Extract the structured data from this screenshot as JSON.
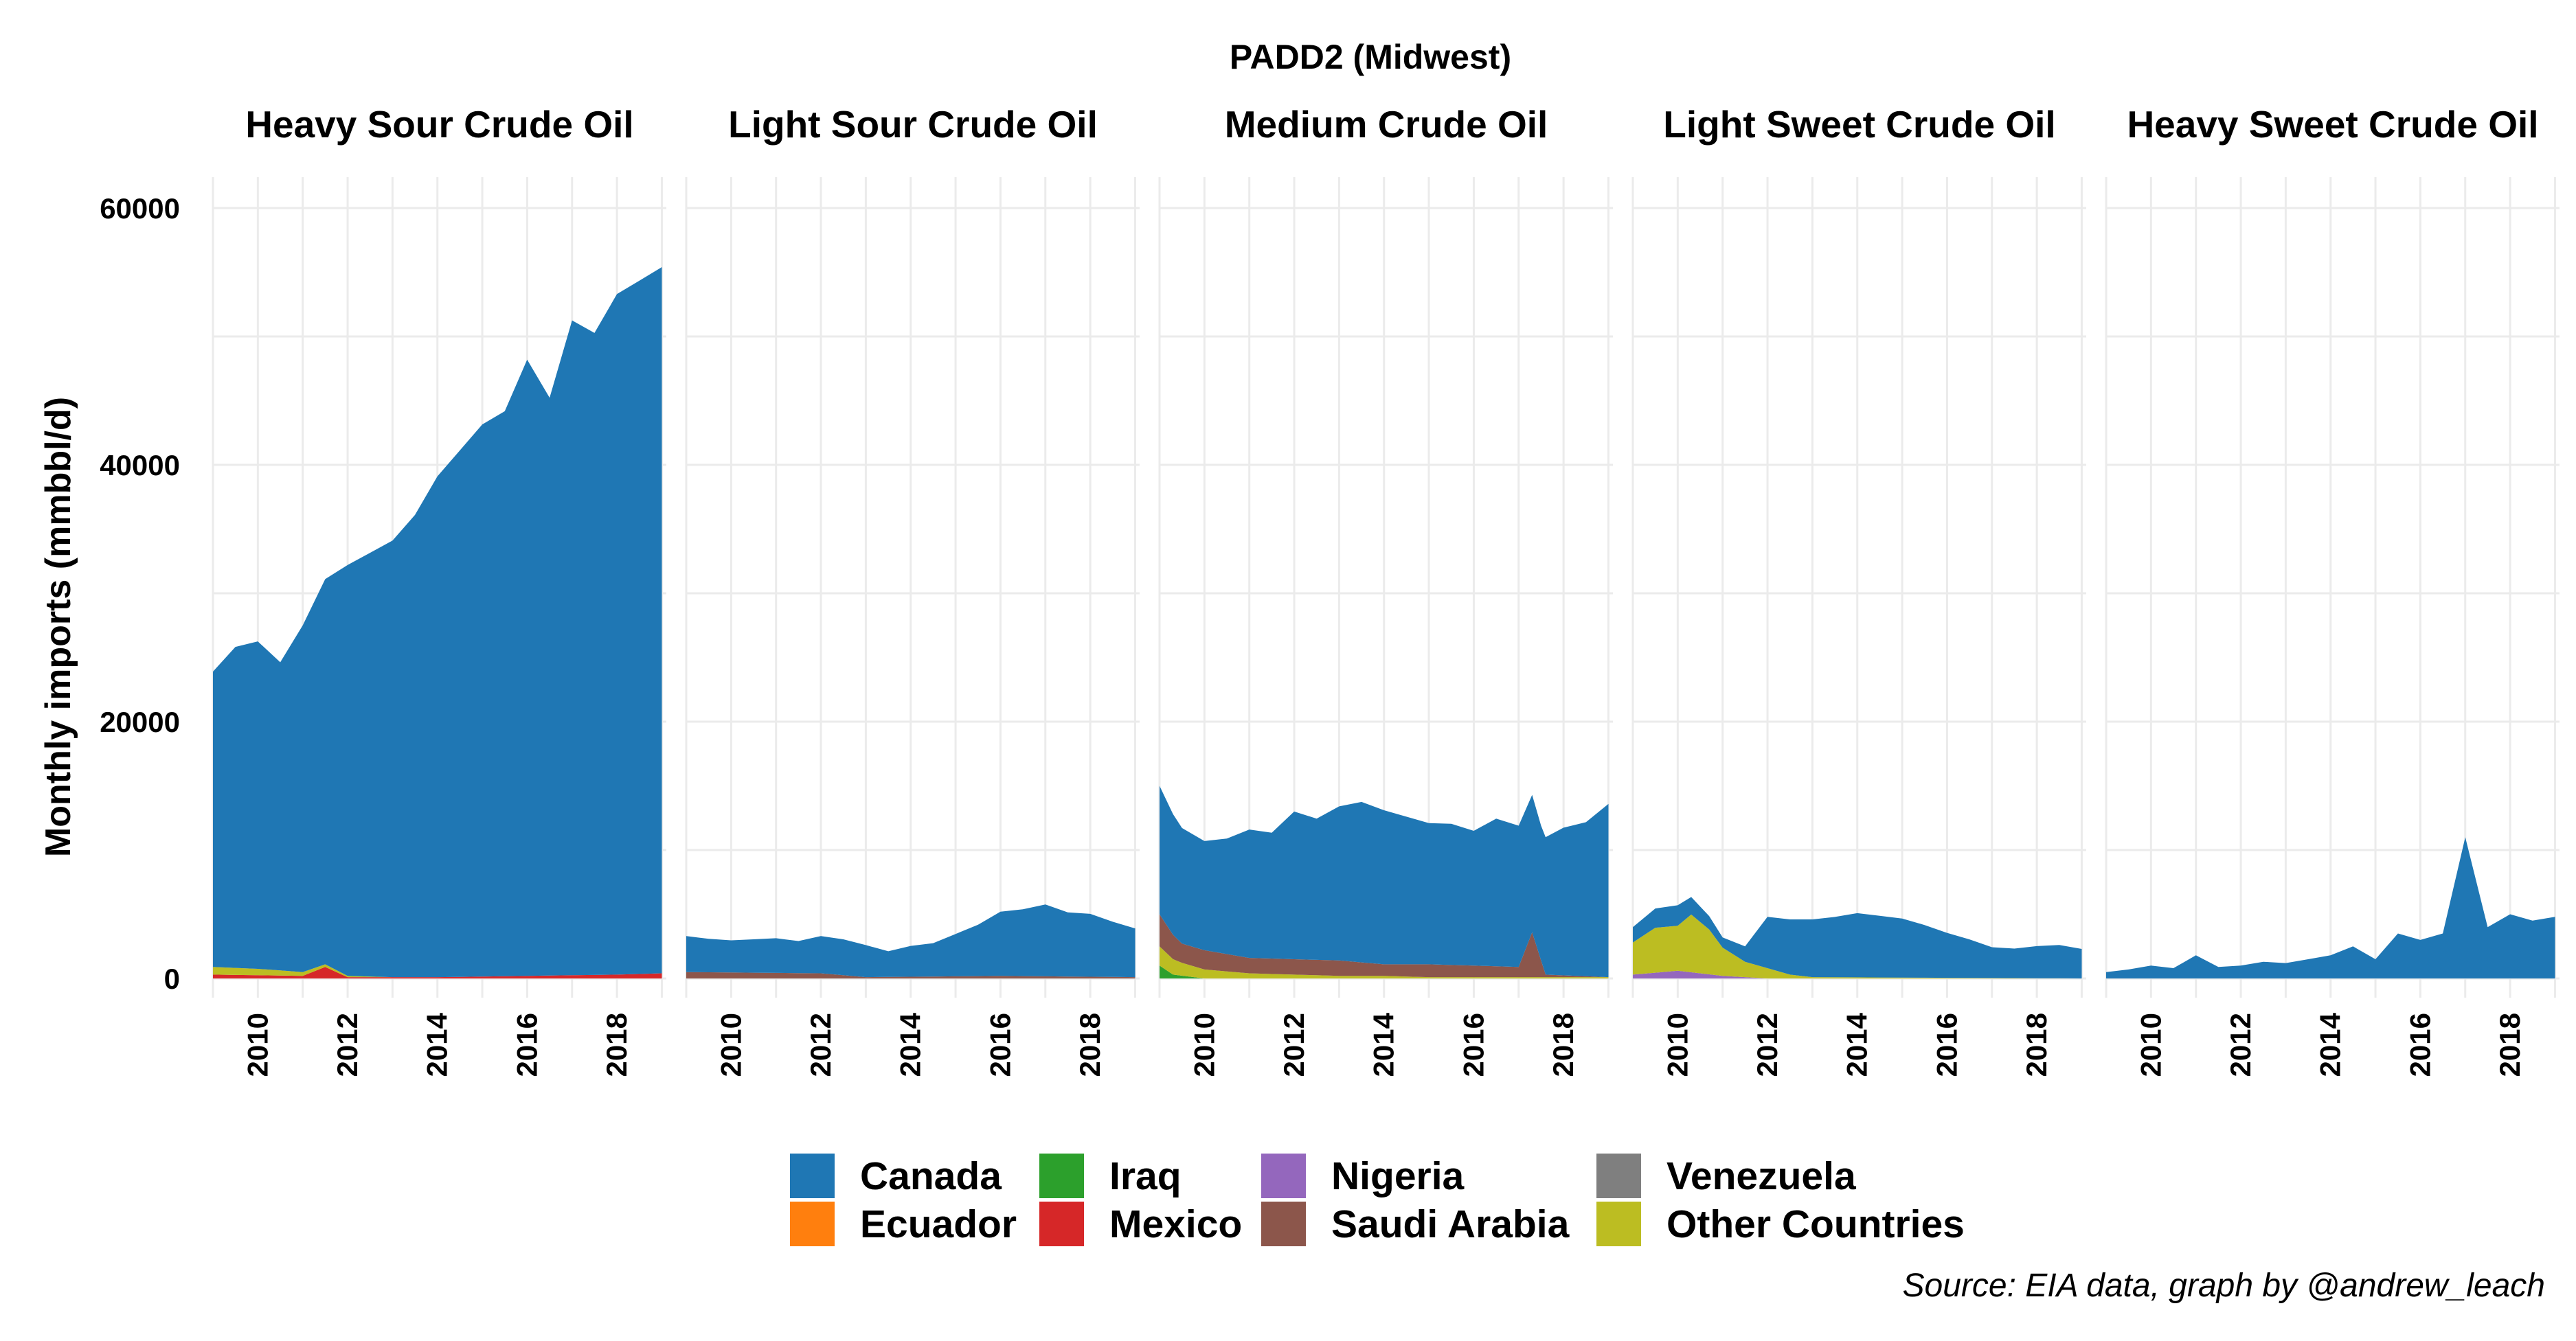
{
  "chart_data": {
    "type": "area",
    "stacked": true,
    "title": "PADD2 (Midwest)",
    "ylabel": "Monthly imports (mmbbl/d)",
    "xlabel": "",
    "caption": "Source: EIA data, graph by @andrew_leach",
    "ylim": [
      0,
      62000
    ],
    "xlim": [
      2009.0,
      2019.1
    ],
    "yticks": [
      "0",
      "20000",
      "40000",
      "60000"
    ],
    "xticks": [
      "2010",
      "2012",
      "2014",
      "2016",
      "2018"
    ],
    "legend_position": "bottom",
    "legend": [
      {
        "name": "Canada",
        "color": "#1f77b4"
      },
      {
        "name": "Ecuador",
        "color": "#ff7f0e"
      },
      {
        "name": "Iraq",
        "color": "#2ca02c"
      },
      {
        "name": "Mexico",
        "color": "#d62728"
      },
      {
        "name": "Nigeria",
        "color": "#9467bd"
      },
      {
        "name": "Saudi Arabia",
        "color": "#8c564b"
      },
      {
        "name": "Venezuela",
        "color": "#7f7f7f"
      },
      {
        "name": "Other Countries",
        "color": "#bcbd22"
      }
    ],
    "facets": [
      {
        "title": "Heavy Sour Crude Oil",
        "series": [
          {
            "name": "Canada",
            "x": [
              2009.0,
              2009.5,
              2010.0,
              2010.5,
              2011.0,
              2011.5,
              2012.0,
              2012.5,
              2013.0,
              2013.5,
              2014.0,
              2014.5,
              2015.0,
              2015.5,
              2016.0,
              2016.5,
              2017.0,
              2017.5,
              2018.0,
              2018.5,
              2019.0
            ],
            "y": [
              23000,
              25000,
              25500,
              24000,
              27000,
              30000,
              32000,
              33000,
              34000,
              36000,
              39000,
              41000,
              43000,
              44000,
              48000,
              45000,
              51000,
              50000,
              53000,
              54000,
              55000
            ]
          },
          {
            "name": "Other Countries",
            "x": [
              2009.0,
              2010.0,
              2011.0,
              2012.0,
              2013.0,
              2019.0
            ],
            "y": [
              600,
              500,
              300,
              100,
              0,
              0
            ]
          },
          {
            "name": "Mexico",
            "x": [
              2009.0,
              2011.0,
              2011.5,
              2012.0,
              2014.0,
              2018.0,
              2019.0
            ],
            "y": [
              300,
              200,
              900,
              100,
              100,
              300,
              400
            ]
          }
        ]
      },
      {
        "title": "Light Sour Crude Oil",
        "series": [
          {
            "name": "Canada",
            "x": [
              2009.0,
              2009.5,
              2010.0,
              2010.5,
              2011.0,
              2011.5,
              2012.0,
              2012.5,
              2013.0,
              2013.5,
              2014.0,
              2014.5,
              2015.0,
              2015.5,
              2016.0,
              2016.5,
              2017.0,
              2017.5,
              2018.0,
              2018.5,
              2019.0
            ],
            "y": [
              2800,
              2600,
              2500,
              2600,
              2700,
              2500,
              2900,
              2800,
              2500,
              2000,
              2400,
              2600,
              3300,
              4000,
              5000,
              5200,
              5600,
              5000,
              4900,
              4300,
              3800
            ]
          },
          {
            "name": "Saudi Arabia",
            "x": [
              2009.0,
              2012.0,
              2013.0,
              2016.0,
              2019.0
            ],
            "y": [
              500,
              400,
              100,
              200,
              100
            ]
          }
        ]
      },
      {
        "title": "Medium Crude Oil",
        "series": [
          {
            "name": "Canada",
            "x": [
              2009.0,
              2009.5,
              2010.0,
              2010.5,
              2011.0,
              2011.5,
              2012.0,
              2012.5,
              2013.0,
              2013.5,
              2014.0,
              2014.5,
              2015.0,
              2015.5,
              2016.0,
              2016.5,
              2017.0,
              2017.5,
              2018.0,
              2018.5,
              2019.0
            ],
            "y": [
              10000,
              9000,
              8500,
              9000,
              10000,
              9800,
              11500,
              11000,
              12000,
              12500,
              12000,
              11500,
              11000,
              11000,
              10500,
              11500,
              11000,
              10500,
              11500,
              12000,
              13500
            ]
          },
          {
            "name": "Saudi Arabia",
            "x": [
              2009.0,
              2009.5,
              2010.0,
              2011.0,
              2012.0,
              2013.0,
              2014.0,
              2015.0,
              2016.0,
              2017.0,
              2017.3,
              2017.6,
              2019.0
            ],
            "y": [
              2500,
              1500,
              1500,
              1200,
              1200,
              1200,
              900,
              1000,
              900,
              800,
              3500,
              200,
              0
            ]
          },
          {
            "name": "Other Countries",
            "x": [
              2009.0,
              2009.5,
              2010.0,
              2011.0,
              2012.0,
              2013.0,
              2014.0,
              2015.0,
              2016.0,
              2017.0,
              2019.0
            ],
            "y": [
              1500,
              1000,
              700,
              400,
              300,
              200,
              200,
              100,
              100,
              100,
              100
            ]
          },
          {
            "name": "Iraq",
            "x": [
              2009.0,
              2009.3,
              2010.0,
              2019.0
            ],
            "y": [
              1000,
              300,
              0,
              0
            ]
          }
        ]
      },
      {
        "title": "Light Sweet Crude Oil",
        "series": [
          {
            "name": "Canada",
            "x": [
              2009.0,
              2009.5,
              2010.0,
              2010.5,
              2011.0,
              2011.5,
              2012.0,
              2012.5,
              2013.0,
              2013.5,
              2014.0,
              2014.5,
              2015.0,
              2015.5,
              2016.0,
              2016.5,
              2017.0,
              2017.5,
              2018.0,
              2018.5,
              2019.0
            ],
            "y": [
              1200,
              1500,
              1600,
              1200,
              800,
              1200,
              4000,
              4300,
              4500,
              4700,
              5000,
              4800,
              4600,
              4100,
              3500,
              3000,
              2400,
              2300,
              2500,
              2600,
              2300
            ]
          },
          {
            "name": "Other Countries",
            "x": [
              2009.0,
              2009.5,
              2010.0,
              2010.3,
              2010.7,
              2011.0,
              2011.5,
              2012.0,
              2012.5,
              2013.0,
              2019.0
            ],
            "y": [
              2500,
              3500,
              3500,
              4500,
              3500,
              2200,
              1200,
              800,
              300,
              100,
              0
            ]
          },
          {
            "name": "Nigeria",
            "x": [
              2009.0,
              2010.0,
              2011.0,
              2012.0,
              2019.0
            ],
            "y": [
              300,
              600,
              200,
              0,
              0
            ]
          }
        ]
      },
      {
        "title": "Heavy Sweet Crude Oil",
        "series": [
          {
            "name": "Canada",
            "x": [
              2009.0,
              2009.5,
              2010.0,
              2010.5,
              2011.0,
              2011.5,
              2012.0,
              2012.5,
              2013.0,
              2013.5,
              2014.0,
              2014.5,
              2015.0,
              2015.5,
              2016.0,
              2016.5,
              2017.0,
              2017.5,
              2018.0,
              2018.5,
              2019.0
            ],
            "y": [
              500,
              700,
              1000,
              800,
              1800,
              900,
              1000,
              1300,
              1200,
              1500,
              1800,
              2500,
              1500,
              3500,
              3000,
              3500,
              11000,
              4000,
              5000,
              4500,
              4800
            ]
          }
        ]
      }
    ]
  }
}
